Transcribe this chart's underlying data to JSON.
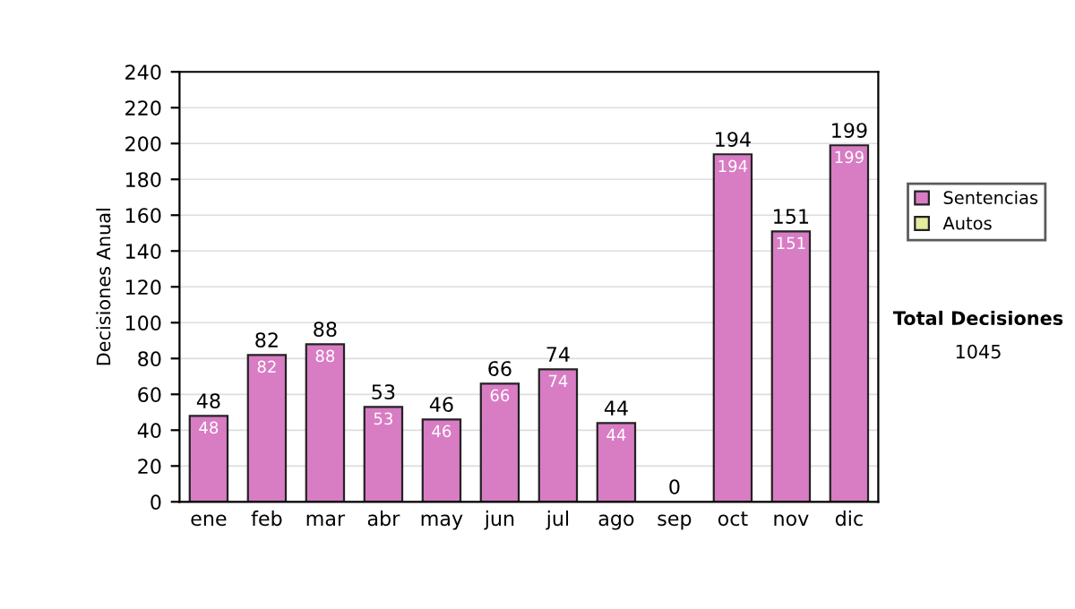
{
  "chart_data": {
    "type": "bar",
    "stacked": true,
    "ylabel": "Decisiones Anual",
    "categories": [
      "ene",
      "feb",
      "mar",
      "abr",
      "may",
      "jun",
      "jul",
      "ago",
      "sep",
      "oct",
      "nov",
      "dic"
    ],
    "series": [
      {
        "name": "Sentencias",
        "color": "#d87cc4",
        "values": [
          48,
          82,
          88,
          53,
          46,
          66,
          74,
          44,
          0,
          194,
          151,
          199
        ],
        "value_labels": [
          "48",
          "82",
          "88",
          "53",
          "46",
          "66",
          "74",
          "44",
          null,
          "194",
          "151",
          "199"
        ]
      },
      {
        "name": "Autos",
        "color": "#e4eca0",
        "values": [
          0,
          0,
          0,
          0,
          0,
          0,
          0,
          0,
          0,
          0,
          0,
          0
        ]
      }
    ],
    "totals": [
      "48",
      "82",
      "88",
      "53",
      "46",
      "66",
      "74",
      "44",
      "0",
      "194",
      "151",
      "199"
    ],
    "ylim": [
      0,
      240
    ],
    "yticks": [
      0,
      20,
      40,
      60,
      80,
      100,
      120,
      140,
      160,
      180,
      200,
      220,
      240
    ],
    "grid": "y",
    "legend": "right",
    "annotations": [
      "Total Decisiones",
      "1045"
    ]
  }
}
